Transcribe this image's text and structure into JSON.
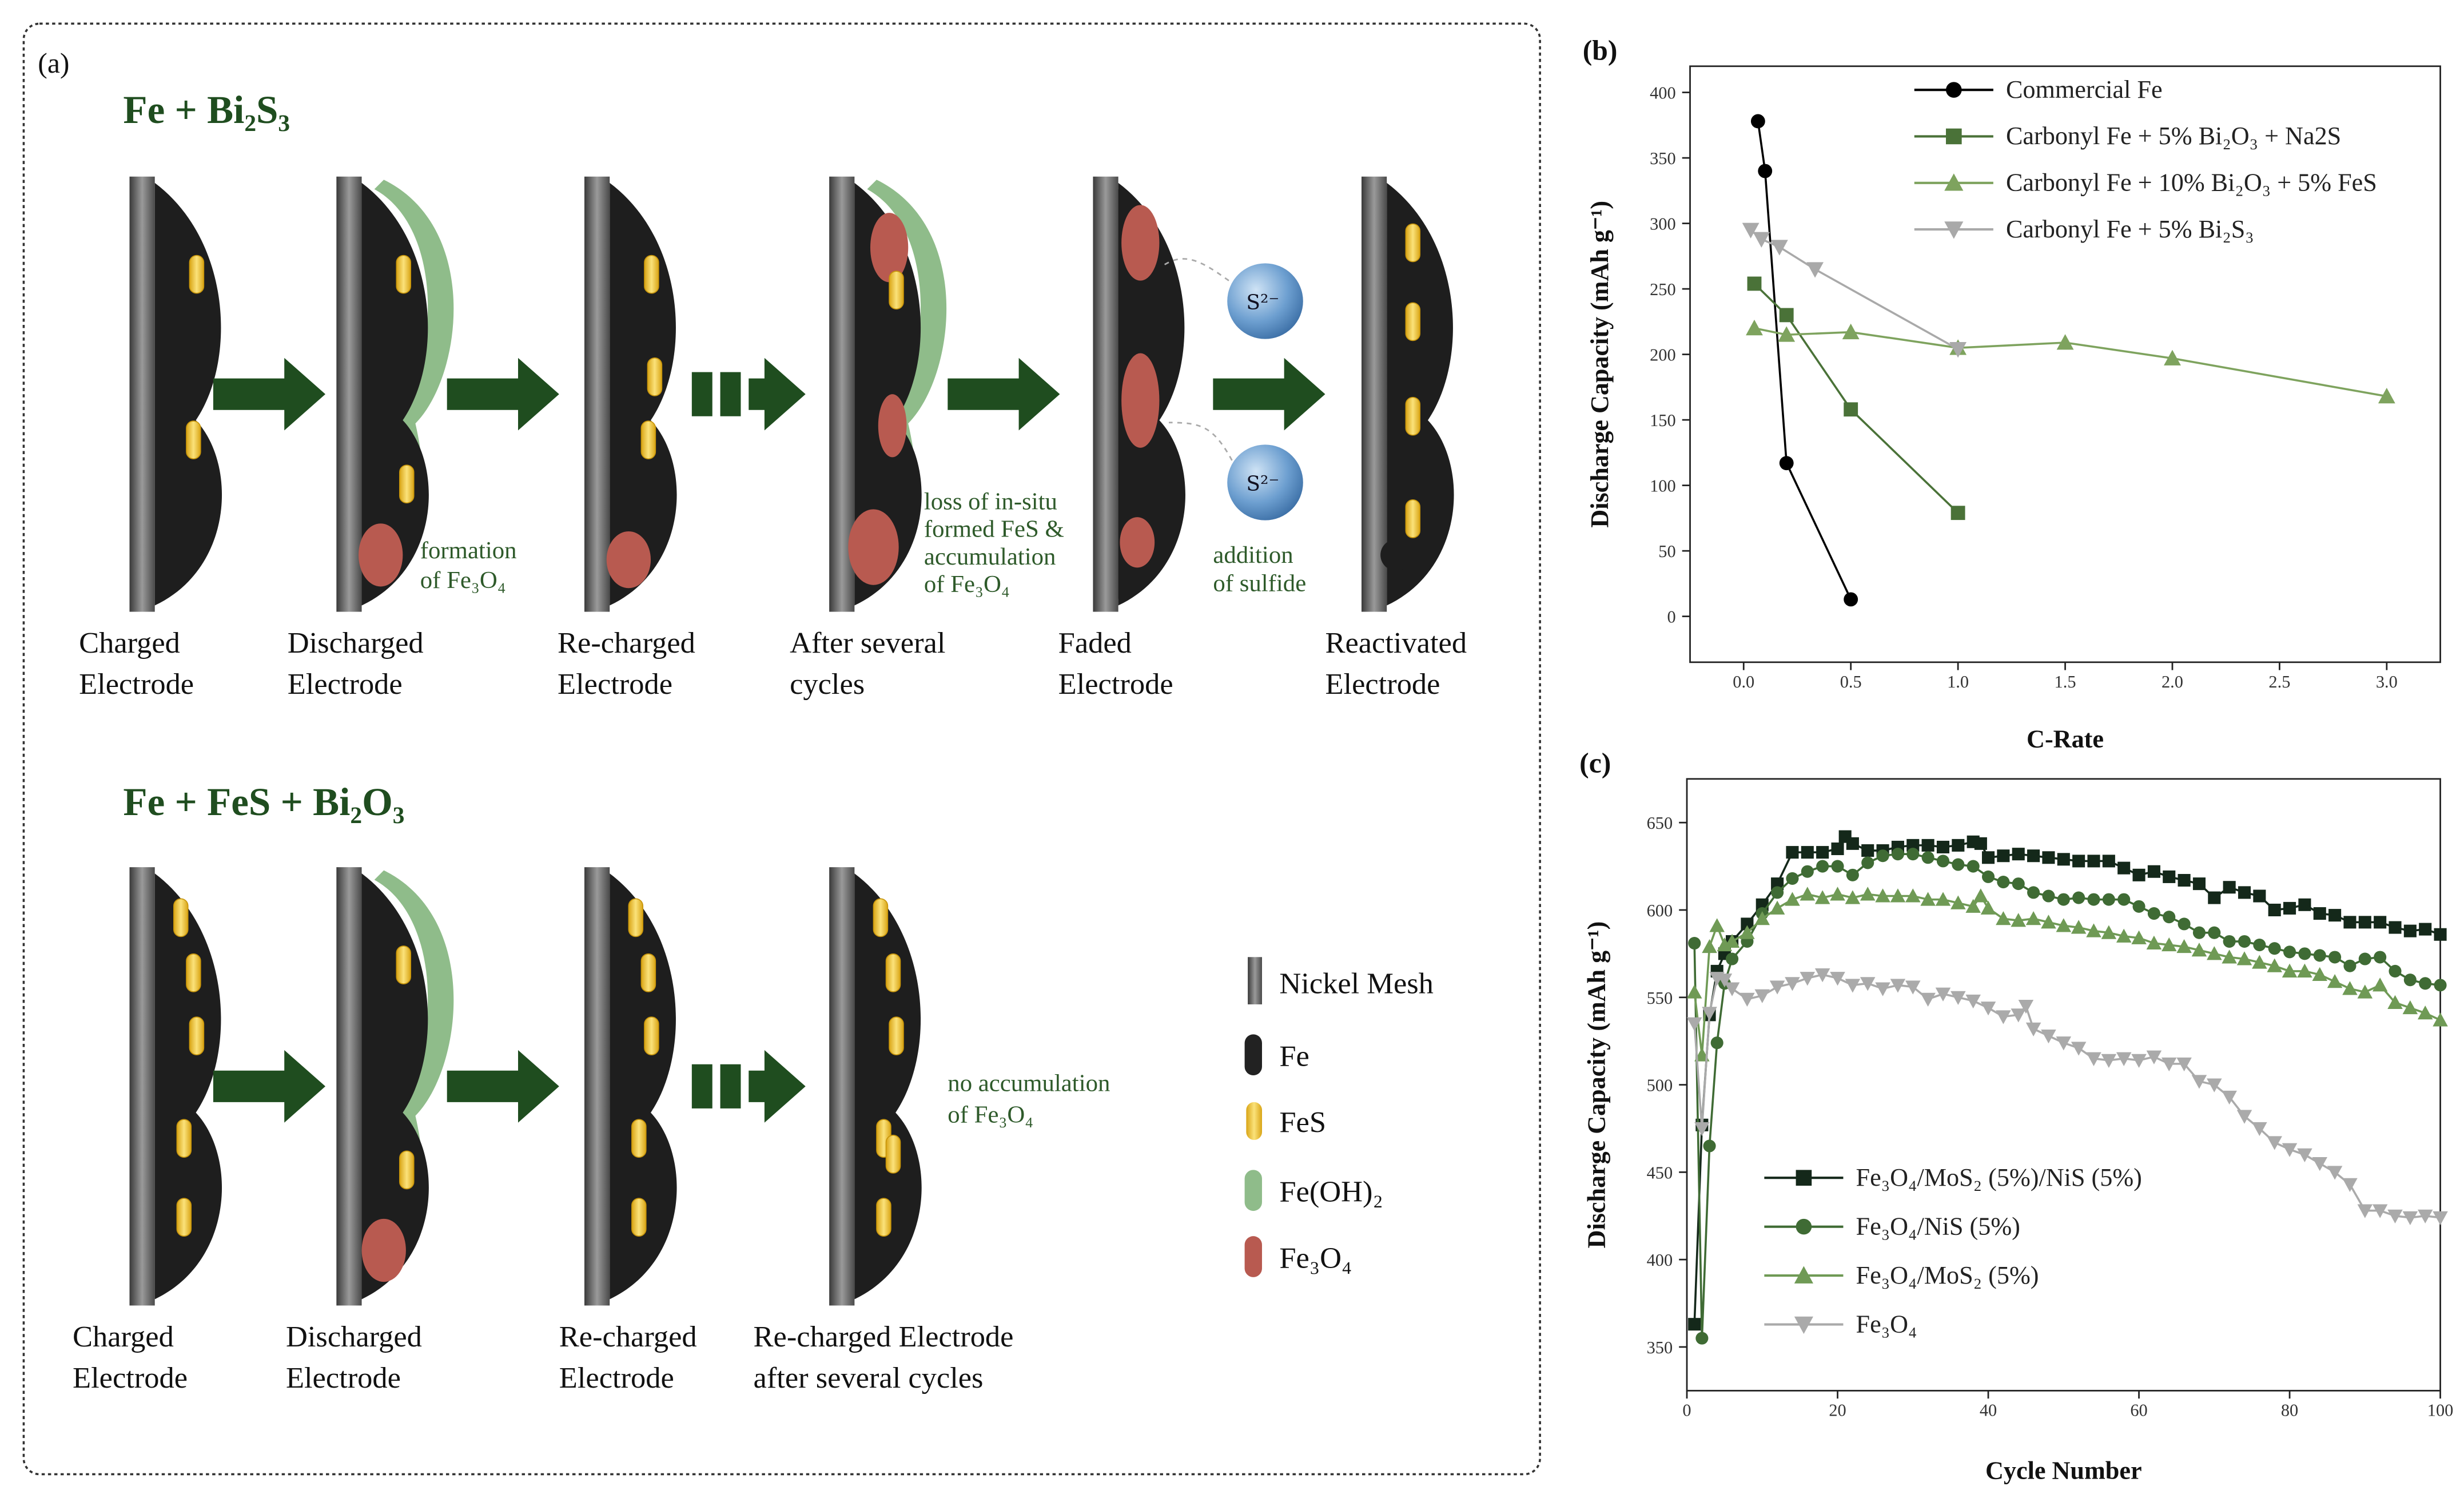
{
  "panel_a": {
    "label": "(a)",
    "row1": {
      "title": "Fe + Bi₂S₃",
      "labels": [
        [
          "Charged",
          "Electrode"
        ],
        [
          "Discharged",
          "Electrode"
        ],
        [
          "Re-charged",
          "Electrode"
        ],
        [
          "After several",
          "cycles"
        ],
        [
          "Faded",
          "Electrode"
        ],
        [
          "Reactivated",
          "Electrode"
        ]
      ],
      "annotations": {
        "formation": [
          "formation",
          "of Fe₃O₄"
        ],
        "loss": [
          "loss of in-situ",
          "formed FeS &",
          "accumulation",
          "of Fe₃O₄"
        ],
        "addition": [
          "addition",
          "of sulfide"
        ]
      },
      "sulfide_ion": "S²⁻"
    },
    "row2": {
      "title": "Fe + FeS + Bi₂O₃",
      "labels": [
        [
          "Charged",
          "Electrode"
        ],
        [
          "Discharged",
          "Electrode"
        ],
        [
          "Re-charged",
          "Electrode"
        ],
        [
          "Re-charged Electrode",
          "after several cycles"
        ]
      ],
      "annotations": {
        "no_accumulation": [
          "no accumulation",
          "of Fe₃O₄"
        ]
      }
    },
    "legend": [
      {
        "label": "Nickel Mesh",
        "color": "#6b6b6b"
      },
      {
        "label": "Fe",
        "color": "#222222"
      },
      {
        "label": "FeS",
        "color": "#f2c230"
      },
      {
        "label": "Fe(OH)₂",
        "color": "#8fbc8a"
      },
      {
        "label": "Fe₃O₄",
        "color": "#b85a50"
      }
    ]
  },
  "chart_data": [
    {
      "panel": "(b)",
      "type": "line",
      "xlabel": "C-Rate",
      "ylabel": "Discharge Capacity (mAh g⁻¹)",
      "xlim": [
        -0.25,
        3.25
      ],
      "ylim": [
        -35,
        420
      ],
      "xticks": [
        "0.0",
        "0.5",
        "1.0",
        "1.5",
        "2.0",
        "2.5",
        "3.0"
      ],
      "yticks": [
        "0",
        "50",
        "100",
        "150",
        "200",
        "250",
        "300",
        "350",
        "400"
      ],
      "legend_position": "top-right",
      "series": [
        {
          "name": "Commercial Fe",
          "marker": "circle",
          "color": "#000000",
          "points": [
            [
              0.067,
              378
            ],
            [
              0.1,
              340
            ],
            [
              0.2,
              117
            ],
            [
              0.5,
              13
            ]
          ]
        },
        {
          "name": "Carbonyl Fe + 5% Bi₂O₃ + Na2S",
          "marker": "square",
          "color": "#4a7238",
          "points": [
            [
              0.05,
              254
            ],
            [
              0.2,
              230
            ],
            [
              0.5,
              158
            ],
            [
              1.0,
              79
            ]
          ]
        },
        {
          "name": "Carbonyl Fe + 10% Bi₂O₃ + 5% FeS",
          "marker": "triangle",
          "color": "#7ea35e",
          "points": [
            [
              0.05,
              220
            ],
            [
              0.2,
              215
            ],
            [
              0.5,
              217
            ],
            [
              1.0,
              205
            ],
            [
              1.5,
              209
            ],
            [
              2.0,
              197
            ],
            [
              3.0,
              168
            ]
          ]
        },
        {
          "name": "Carbonyl Fe + 5% Bi₂S₃",
          "marker": "triangle-down",
          "color": "#a9a9a9",
          "points": [
            [
              0.033,
              295
            ],
            [
              0.083,
              288
            ],
            [
              0.167,
              282
            ],
            [
              0.333,
              265
            ],
            [
              1.0,
              204
            ]
          ]
        }
      ]
    },
    {
      "panel": "(c)",
      "type": "line",
      "xlabel": "Cycle Number",
      "ylabel": "Discharge Capacity (mAh g⁻¹)",
      "xlim": [
        0,
        100
      ],
      "ylim": [
        325,
        675
      ],
      "xticks": [
        "0",
        "20",
        "40",
        "60",
        "80",
        "100"
      ],
      "yticks": [
        "350",
        "400",
        "450",
        "500",
        "550",
        "600",
        "650"
      ],
      "legend_position": "bottom-left",
      "series": [
        {
          "name": "Fe₃O₄/MoS₂ (5%)/NiS (5%)",
          "marker": "square",
          "color": "#14281a",
          "points": [
            [
              1,
              363
            ],
            [
              2,
              477
            ],
            [
              3,
              540
            ],
            [
              4,
              565
            ],
            [
              5,
              575
            ],
            [
              6,
              582
            ],
            [
              8,
              592
            ],
            [
              10,
              603
            ],
            [
              12,
              615
            ],
            [
              14,
              633
            ],
            [
              16,
              633
            ],
            [
              18,
              633
            ],
            [
              20,
              635
            ],
            [
              21,
              642
            ],
            [
              22,
              638
            ],
            [
              24,
              634
            ],
            [
              26,
              634
            ],
            [
              28,
              636
            ],
            [
              30,
              637
            ],
            [
              32,
              637
            ],
            [
              34,
              636
            ],
            [
              36,
              637
            ],
            [
              38,
              639
            ],
            [
              39,
              638
            ],
            [
              40,
              630
            ],
            [
              42,
              631
            ],
            [
              44,
              632
            ],
            [
              46,
              631
            ],
            [
              48,
              630
            ],
            [
              50,
              629
            ],
            [
              52,
              628
            ],
            [
              54,
              628
            ],
            [
              56,
              628
            ],
            [
              58,
              624
            ],
            [
              60,
              620
            ],
            [
              62,
              622
            ],
            [
              64,
              619
            ],
            [
              66,
              617
            ],
            [
              68,
              615
            ],
            [
              70,
              607
            ],
            [
              72,
              613
            ],
            [
              74,
              610
            ],
            [
              76,
              608
            ],
            [
              78,
              600
            ],
            [
              80,
              601
            ],
            [
              82,
              603
            ],
            [
              84,
              598
            ],
            [
              86,
              597
            ],
            [
              88,
              593
            ],
            [
              90,
              593
            ],
            [
              92,
              593
            ],
            [
              94,
              590
            ],
            [
              96,
              588
            ],
            [
              98,
              589
            ],
            [
              100,
              586
            ]
          ]
        },
        {
          "name": "Fe₃O₄/NiS (5%)",
          "marker": "circle",
          "color": "#3f6b34",
          "points": [
            [
              1,
              581
            ],
            [
              2,
              355
            ],
            [
              3,
              465
            ],
            [
              4,
              524
            ],
            [
              5,
              558
            ],
            [
              6,
              572
            ],
            [
              8,
              582
            ],
            [
              10,
              598
            ],
            [
              12,
              610
            ],
            [
              14,
              618
            ],
            [
              16,
              622
            ],
            [
              18,
              625
            ],
            [
              20,
              625
            ],
            [
              22,
              620
            ],
            [
              24,
              627
            ],
            [
              26,
              631
            ],
            [
              28,
              632
            ],
            [
              30,
              632
            ],
            [
              32,
              630
            ],
            [
              34,
              628
            ],
            [
              36,
              626
            ],
            [
              38,
              625
            ],
            [
              40,
              619
            ],
            [
              42,
              616
            ],
            [
              44,
              615
            ],
            [
              46,
              610
            ],
            [
              48,
              608
            ],
            [
              50,
              606
            ],
            [
              52,
              607
            ],
            [
              54,
              606
            ],
            [
              56,
              606
            ],
            [
              58,
              606
            ],
            [
              60,
              602
            ],
            [
              62,
              598
            ],
            [
              64,
              596
            ],
            [
              66,
              592
            ],
            [
              68,
              587
            ],
            [
              70,
              587
            ],
            [
              72,
              582
            ],
            [
              74,
              582
            ],
            [
              76,
              580
            ],
            [
              78,
              578
            ],
            [
              80,
              576
            ],
            [
              82,
              575
            ],
            [
              84,
              574
            ],
            [
              86,
              573
            ],
            [
              88,
              568
            ],
            [
              90,
              572
            ],
            [
              92,
              573
            ],
            [
              94,
              565
            ],
            [
              96,
              560
            ],
            [
              98,
              558
            ],
            [
              100,
              557
            ]
          ]
        },
        {
          "name": "Fe₃O₄/MoS₂ (5%)",
          "marker": "triangle",
          "color": "#6f9a55",
          "points": [
            [
              1,
              553
            ],
            [
              2,
              517
            ],
            [
              3,
              579
            ],
            [
              4,
              591
            ],
            [
              5,
              580
            ],
            [
              6,
              582
            ],
            [
              8,
              587
            ],
            [
              10,
              595
            ],
            [
              12,
              601
            ],
            [
              14,
              606
            ],
            [
              16,
              609
            ],
            [
              18,
              607
            ],
            [
              20,
              609
            ],
            [
              22,
              607
            ],
            [
              24,
              609
            ],
            [
              26,
              608
            ],
            [
              28,
              608
            ],
            [
              30,
              608
            ],
            [
              32,
              606
            ],
            [
              34,
              606
            ],
            [
              36,
              604
            ],
            [
              38,
              602
            ],
            [
              39,
              608
            ],
            [
              40,
              601
            ],
            [
              42,
              595
            ],
            [
              44,
              594
            ],
            [
              46,
              595
            ],
            [
              48,
              593
            ],
            [
              50,
              591
            ],
            [
              52,
              590
            ],
            [
              54,
              588
            ],
            [
              56,
              587
            ],
            [
              58,
              585
            ],
            [
              60,
              584
            ],
            [
              62,
              581
            ],
            [
              64,
              580
            ],
            [
              66,
              579
            ],
            [
              68,
              577
            ],
            [
              70,
              575
            ],
            [
              72,
              573
            ],
            [
              74,
              572
            ],
            [
              76,
              570
            ],
            [
              78,
              568
            ],
            [
              80,
              565
            ],
            [
              82,
              565
            ],
            [
              84,
              563
            ],
            [
              86,
              559
            ],
            [
              88,
              555
            ],
            [
              90,
              553
            ],
            [
              92,
              557
            ],
            [
              94,
              547
            ],
            [
              96,
              544
            ],
            [
              98,
              541
            ],
            [
              100,
              537
            ]
          ]
        },
        {
          "name": "Fe₃O₄",
          "marker": "triangle-down",
          "color": "#aaaaaa",
          "points": [
            [
              1,
              535
            ],
            [
              2,
              475
            ],
            [
              3,
              541
            ],
            [
              4,
              561
            ],
            [
              5,
              560
            ],
            [
              6,
              555
            ],
            [
              8,
              549
            ],
            [
              10,
              551
            ],
            [
              12,
              556
            ],
            [
              14,
              558
            ],
            [
              16,
              561
            ],
            [
              18,
              563
            ],
            [
              20,
              561
            ],
            [
              22,
              557
            ],
            [
              24,
              558
            ],
            [
              26,
              555
            ],
            [
              28,
              557
            ],
            [
              30,
              556
            ],
            [
              32,
              549
            ],
            [
              34,
              552
            ],
            [
              36,
              550
            ],
            [
              38,
              548
            ],
            [
              40,
              544
            ],
            [
              42,
              539
            ],
            [
              44,
              540
            ],
            [
              45,
              545
            ],
            [
              46,
              532
            ],
            [
              48,
              528
            ],
            [
              50,
              524
            ],
            [
              52,
              521
            ],
            [
              54,
              515
            ],
            [
              56,
              514
            ],
            [
              58,
              515
            ],
            [
              60,
              514
            ],
            [
              62,
              516
            ],
            [
              64,
              512
            ],
            [
              66,
              512
            ],
            [
              68,
              502
            ],
            [
              70,
              500
            ],
            [
              72,
              493
            ],
            [
              74,
              482
            ],
            [
              76,
              475
            ],
            [
              78,
              467
            ],
            [
              80,
              463
            ],
            [
              82,
              460
            ],
            [
              84,
              455
            ],
            [
              86,
              450
            ],
            [
              88,
              443
            ],
            [
              90,
              428
            ],
            [
              92,
              428
            ],
            [
              94,
              425
            ],
            [
              96,
              424
            ],
            [
              98,
              425
            ],
            [
              100,
              424
            ]
          ]
        }
      ]
    }
  ]
}
